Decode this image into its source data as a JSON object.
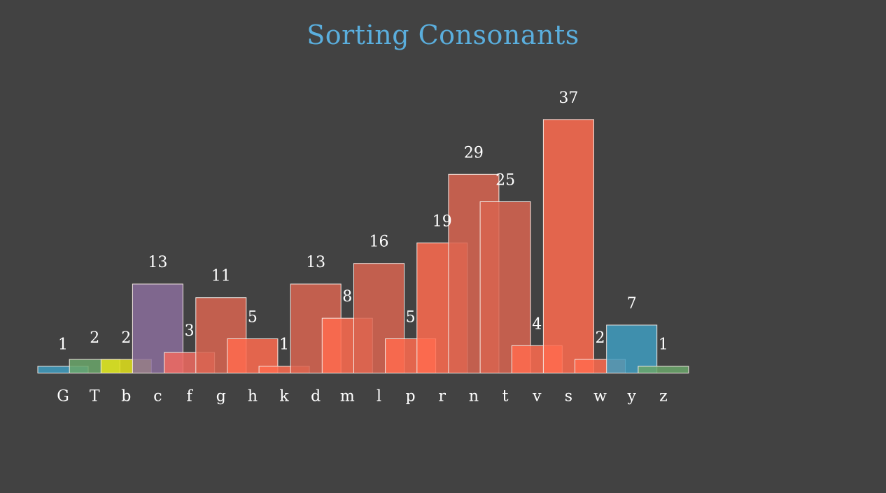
{
  "chart_data": {
    "type": "bar",
    "title": "Sorting Consonants",
    "xlabel": "",
    "ylabel": "",
    "grid": false,
    "legend": "none",
    "categories": [
      "G",
      "T",
      "b",
      "c",
      "f",
      "g",
      "h",
      "k",
      "d",
      "m",
      "l",
      "p",
      "r",
      "n",
      "t",
      "v",
      "s",
      "w",
      "y",
      "z"
    ],
    "values": [
      1,
      2,
      2,
      13,
      3,
      11,
      5,
      1,
      13,
      8,
      16,
      5,
      19,
      29,
      25,
      4,
      37,
      2,
      7,
      1
    ],
    "ylim": [
      0,
      40
    ],
    "colors": [
      "#3e9cc0",
      "#6aa66a",
      "#e2e21a",
      "#8a6d9b",
      "#f06a60",
      "#d86450",
      "#ff6b4f",
      "#ff6b4f",
      "#d86450",
      "#ff6b4f",
      "#d86450",
      "#ff6b4f",
      "#ff6b4f",
      "#d86450",
      "#d86450",
      "#ff6b4f",
      "#ff6b4f",
      "#ff6b4f",
      "#3e9cc0",
      "#6aa66a"
    ]
  }
}
